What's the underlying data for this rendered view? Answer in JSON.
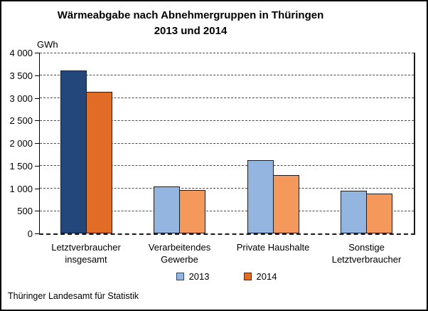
{
  "title": {
    "line1": "Wärmeabgabe nach Abnehmergruppen in Thüringen",
    "line2": "2013 und 2014"
  },
  "source": "Thüringer Landesamt für Statistik",
  "colors": {
    "bar_2013_highlight": "#24477B",
    "bar_2013_normal": "#94B5E0",
    "bar_2014_highlight": "#E16C26",
    "bar_2014_normal": "#F4985C",
    "bar_border": "#1c1c1c",
    "legend_2013_fill": "#94B5E0",
    "legend_2013_border": "#24477B",
    "legend_2014_fill": "#E16C26",
    "legend_2014_border": "#333333"
  },
  "chart_data": {
    "type": "bar",
    "title": "Wärmeabgabe nach Abnehmergruppen in Thüringen 2013 und 2014",
    "ylabel": "GWh",
    "xlabel": "",
    "ylim": [
      0,
      4000
    ],
    "ytick_step": 500,
    "ytick_labels": [
      "0",
      "500",
      "1 000",
      "1 500",
      "2 000",
      "2 500",
      "3 000",
      "3 500",
      "4 000"
    ],
    "grid": "horizontal-dashed",
    "legend_position": "bottom-center",
    "categories": [
      "Letztverbraucher insgesamt",
      "Verarbeitendes Gewerbe",
      "Private Haushalte",
      "Sonstige Letztverbraucher"
    ],
    "category_label_lines": [
      [
        "Letztverbraucher",
        "insgesamt"
      ],
      [
        "Verarbeitendes",
        "Gewerbe"
      ],
      [
        "Private Haushalte"
      ],
      [
        "Sonstige",
        "Letztverbraucher"
      ]
    ],
    "highlight_category_index": 0,
    "series": [
      {
        "name": "2013",
        "values": [
          3600,
          1040,
          1620,
          940
        ]
      },
      {
        "name": "2014",
        "values": [
          3130,
          960,
          1290,
          880
        ]
      }
    ]
  }
}
